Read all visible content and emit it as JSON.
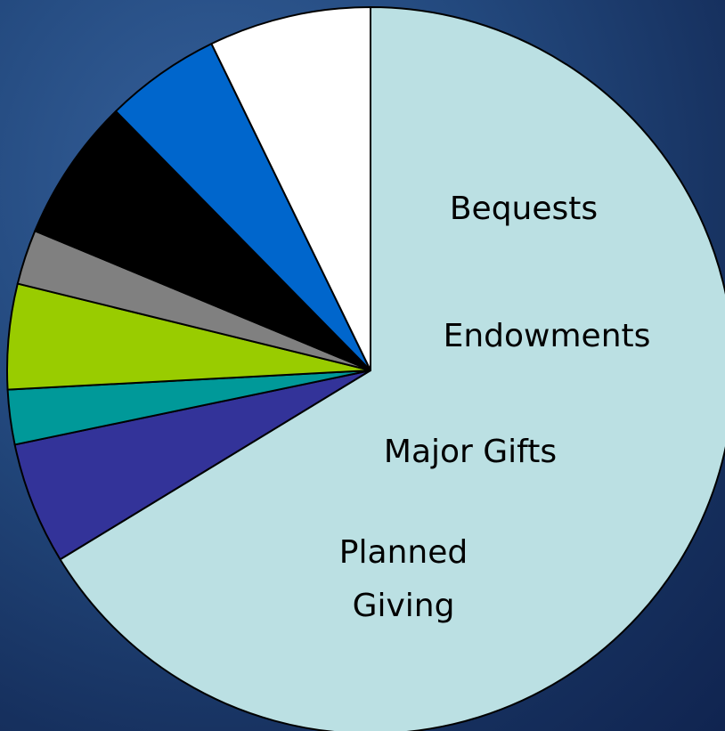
{
  "chart_data": {
    "type": "pie",
    "start_angle_deg": 0,
    "direction": "clockwise",
    "labels": [
      {
        "text": [
          "Bequests"
        ]
      },
      {
        "text": [
          "Endowments"
        ]
      },
      {
        "text": [
          "Major Gifts"
        ]
      },
      {
        "text": [
          "Planned",
          "Giving"
        ]
      }
    ],
    "slices": [
      {
        "value": 70.8,
        "color": "#bbe0e3"
      },
      {
        "value": 5.8,
        "color": "#333399"
      },
      {
        "value": 2.6,
        "color": "#009999"
      },
      {
        "value": 5.0,
        "color": "#99cc00"
      },
      {
        "value": 2.6,
        "color": "#808080"
      },
      {
        "value": 6.8,
        "color": "#000000"
      },
      {
        "value": 5.5,
        "color": "#0066cc"
      },
      {
        "value": 7.7,
        "color": "#ffffff"
      }
    ],
    "background": "#23497e"
  }
}
